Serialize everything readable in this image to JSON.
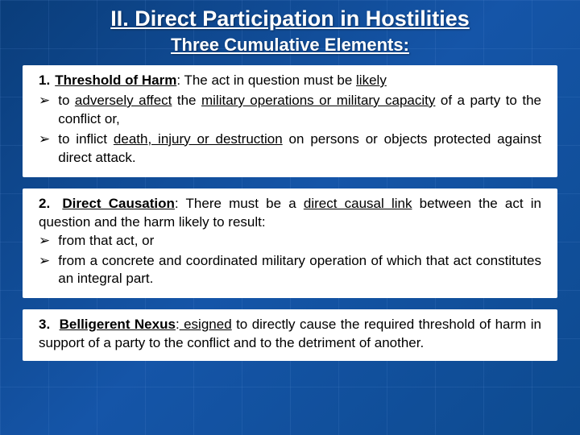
{
  "colors": {
    "background_gradient": [
      "#0a3d7a",
      "#1555a8",
      "#0d4a8f"
    ],
    "box_bg": "#ffffff",
    "title_text": "#ffffff",
    "body_text": "#000000",
    "grid_line": "rgba(100,150,220,0.15)"
  },
  "typography": {
    "font_family": "Arial, sans-serif",
    "title_size_pt": 20,
    "subtitle_size_pt": 17,
    "body_size_pt": 13,
    "title_weight": "bold",
    "subtitle_weight": "bold"
  },
  "title": "II. Direct Participation in Hostilities",
  "subtitle": "Three Cumulative Elements:",
  "items": [
    {
      "num": "1.",
      "heading": "Threshold of Harm",
      "colon": ":",
      "lead_a": " The act in question must be ",
      "u1": "likely",
      "bullets": [
        {
          "marker": "➢",
          "pre": "to ",
          "u": "adversely affect",
          "mid": " the ",
          "u2": "military operations or military capacity",
          "post": " of a party to the conflict or,"
        },
        {
          "marker": "➢",
          "pre": "to inflict ",
          "u": "death, injury or destruction",
          "post": " on persons or objects protected against direct attack."
        }
      ]
    },
    {
      "num": "2.",
      "heading": "Direct Causation",
      "colon": ":",
      "lead_a": "   There must be a ",
      "u1": "direct causal link",
      "lead_b": " between the act in question and the harm likely to result:",
      "bullets": [
        {
          "marker": "➢",
          "text": "from that act, or"
        },
        {
          "marker": "➢",
          "text": "from a concrete and coordinated military operation of which that act constitutes an integral part."
        }
      ]
    },
    {
      "num": "3.",
      "heading": "Belligerent Nexus",
      "colon": ":",
      "u_after": " esigned",
      "tail": " to directly cause the required threshold of harm in support of a party to the conflict and to the detriment of another."
    }
  ]
}
